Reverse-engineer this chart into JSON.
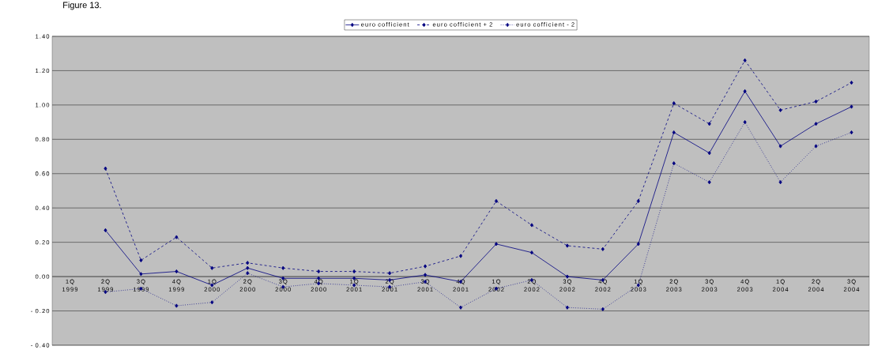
{
  "chart_data": {
    "type": "line",
    "annotations": [
      "Figure 13."
    ],
    "categories": [
      "1Q 1999",
      "2Q 1999",
      "3Q 1999",
      "4Q 1999",
      "1Q 2000",
      "2Q 2000",
      "3Q 2000",
      "4Q 2000",
      "1Q 2001",
      "2Q 2001",
      "3Q 2001",
      "4Q 2001",
      "1Q 2002",
      "2Q 2002",
      "3Q 2002",
      "4Q 2002",
      "1Q 2003",
      "2Q 2003",
      "3Q 2003",
      "4Q 2003",
      "1Q 2004",
      "2Q 2004",
      "3Q 2004"
    ],
    "series": [
      {
        "name": "euro cofficient",
        "color": "#000080",
        "line_style": "solid",
        "values": [
          null,
          0.27,
          0.015,
          0.03,
          -0.05,
          0.05,
          -0.01,
          -0.01,
          -0.01,
          -0.02,
          0.01,
          -0.03,
          0.19,
          0.14,
          0.0,
          -0.02,
          0.19,
          0.84,
          0.72,
          1.08,
          0.76,
          0.89,
          0.99
        ]
      },
      {
        "name": "euro cofficient + 2",
        "color": "#000080",
        "line_style": "dashed",
        "values": [
          null,
          0.63,
          0.095,
          0.23,
          0.05,
          0.08,
          0.05,
          0.03,
          0.03,
          0.02,
          0.06,
          0.12,
          0.44,
          0.3,
          0.18,
          0.16,
          0.44,
          1.01,
          0.89,
          1.26,
          0.97,
          1.02,
          1.13
        ]
      },
      {
        "name": "euro cofficient - 2",
        "color": "#000080",
        "line_style": "dotted",
        "values": [
          null,
          -0.09,
          -0.07,
          -0.17,
          -0.15,
          0.02,
          -0.06,
          -0.04,
          -0.05,
          -0.06,
          -0.03,
          -0.18,
          -0.07,
          -0.02,
          -0.18,
          -0.19,
          -0.05,
          0.66,
          0.55,
          0.9,
          0.55,
          0.76,
          0.84
        ]
      }
    ],
    "ylim": [
      -0.4,
      1.4
    ],
    "yticks": [
      {
        "value": -0.4,
        "label": "- 0.40"
      },
      {
        "value": -0.2,
        "label": "- 0.20"
      },
      {
        "value": 0,
        "label": "0.00"
      },
      {
        "value": 0.2,
        "label": "0.20"
      },
      {
        "value": 0.4,
        "label": "0.40"
      },
      {
        "value": 0.6,
        "label": "0.60"
      },
      {
        "value": 0.8,
        "label": "0.80"
      },
      {
        "value": 1.0,
        "label": "1.00"
      },
      {
        "value": 1.2,
        "label": "1.20"
      },
      {
        "value": 1.4,
        "label": "1.40"
      }
    ],
    "grid": "y",
    "legend": "top",
    "marker": "diamond"
  }
}
